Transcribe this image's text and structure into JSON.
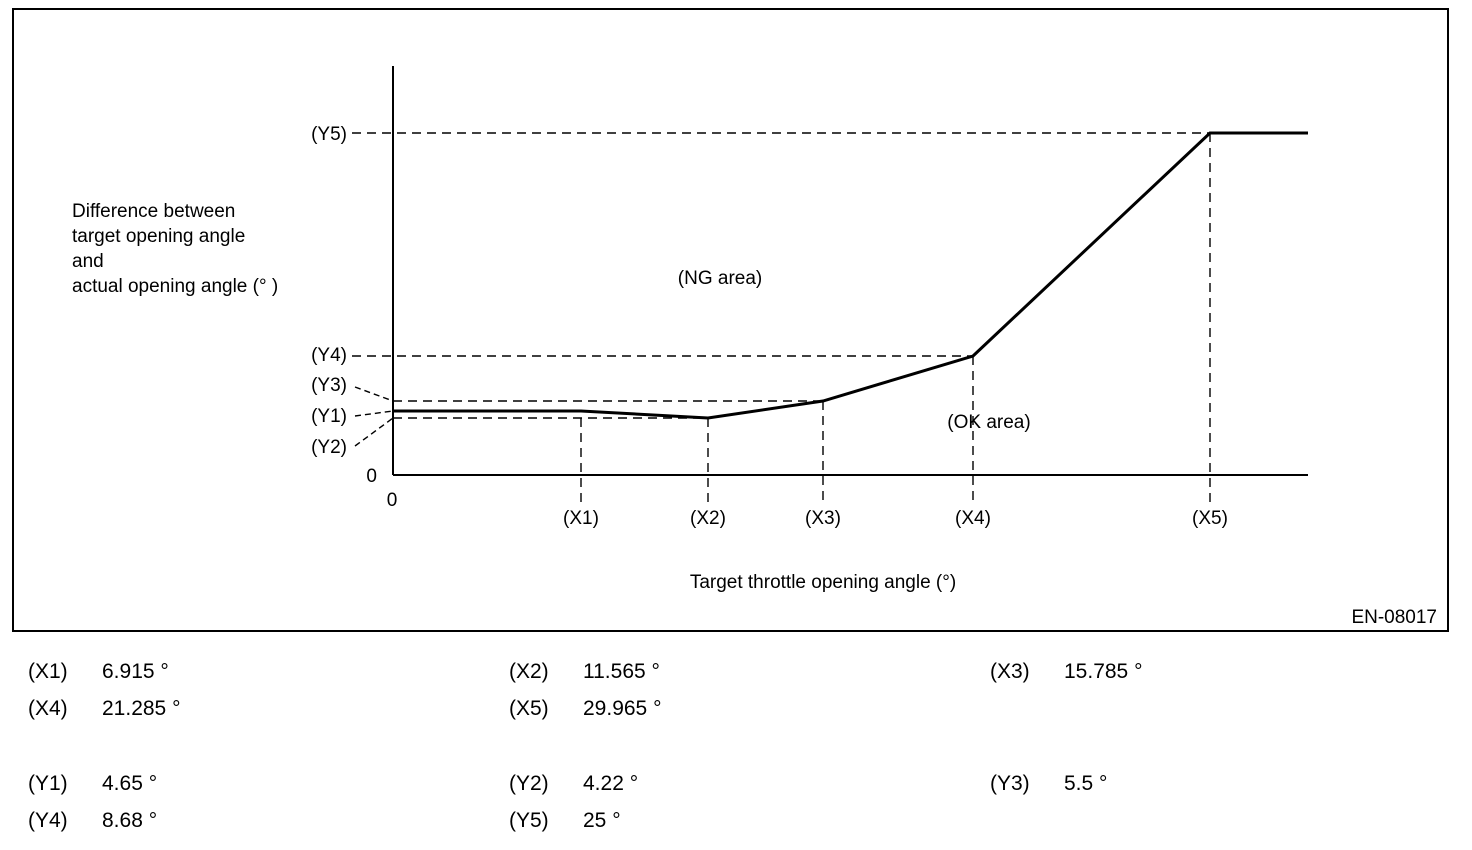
{
  "chart_data": {
    "type": "line",
    "title": "",
    "xlabel": "Target throttle opening angle (°)",
    "ylabel_lines": [
      "Difference between",
      "target opening angle",
      "and",
      "actual opening angle (° )"
    ],
    "origin_x_label": "0",
    "origin_y_label": "0",
    "x_ticks": [
      "(X1)",
      "(X2)",
      "(X3)",
      "(X4)",
      "(X5)"
    ],
    "y_ticks": [
      "(Y5)",
      "(Y4)",
      "(Y3)",
      "(Y1)",
      "(Y2)"
    ],
    "series": [
      {
        "points": [
          {
            "x": 0,
            "y": 4.65
          },
          {
            "x": 6.915,
            "y": 4.65
          },
          {
            "x": 11.565,
            "y": 4.22
          },
          {
            "x": 15.785,
            "y": 5.5
          },
          {
            "x": 21.285,
            "y": 8.68
          },
          {
            "x": 29.965,
            "y": 25
          },
          {
            "x": 34,
            "y": 25
          }
        ]
      }
    ],
    "regions": {
      "ng": "(NG area)",
      "ok": "(OK area)"
    },
    "figure_code": "EN-08017",
    "grid": false
  },
  "legend": {
    "x": [
      {
        "code": "(X1)",
        "value": "6.915 °"
      },
      {
        "code": "(X2)",
        "value": "11.565 °"
      },
      {
        "code": "(X3)",
        "value": "15.785 °"
      },
      {
        "code": "(X4)",
        "value": "21.285 °"
      },
      {
        "code": "(X5)",
        "value": "29.965 °"
      }
    ],
    "y": [
      {
        "code": "(Y1)",
        "value": "4.65 °"
      },
      {
        "code": "(Y2)",
        "value": "4.22 °"
      },
      {
        "code": "(Y3)",
        "value": "5.5 °"
      },
      {
        "code": "(Y4)",
        "value": "8.68 °"
      },
      {
        "code": "(Y5)",
        "value": "25 °"
      }
    ]
  }
}
